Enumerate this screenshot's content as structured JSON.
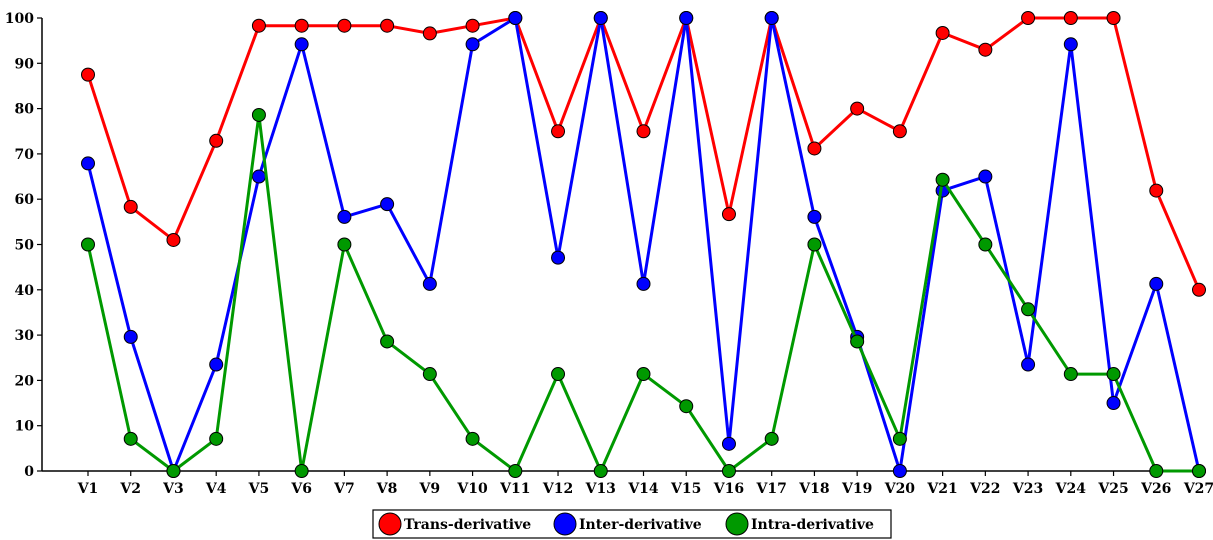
{
  "chart_data": {
    "type": "line",
    "title": "",
    "xlabel": "",
    "ylabel": "",
    "ylim": [
      0,
      100
    ],
    "yticks": [
      0,
      10,
      20,
      30,
      40,
      50,
      60,
      70,
      80,
      90,
      100
    ],
    "grid": false,
    "legend_position": "bottom-center",
    "categories": [
      "V1",
      "V2",
      "V3",
      "V4",
      "V5",
      "V6",
      "V7",
      "V8",
      "V9",
      "V10",
      "V11",
      "V12",
      "V13",
      "V14",
      "V15",
      "V16",
      "V17",
      "V18",
      "V19",
      "V20",
      "V21",
      "V22",
      "V23",
      "V24",
      "V25",
      "V26",
      "V27"
    ],
    "series": [
      {
        "name": "Trans-derivative",
        "color": "#ff0000",
        "values": [
          87.5,
          58.3,
          51,
          72.9,
          98.3,
          98.3,
          98.3,
          98.3,
          96.6,
          98.3,
          100,
          75,
          100,
          75,
          100,
          56.7,
          100,
          71.2,
          80,
          75,
          96.7,
          93,
          100,
          100,
          100,
          61.9,
          40
        ]
      },
      {
        "name": "Inter-derivative",
        "color": "#0000ff",
        "values": [
          67.9,
          29.6,
          0,
          23.5,
          65,
          94.2,
          56.1,
          58.9,
          41.3,
          94.2,
          100,
          47.1,
          100,
          41.3,
          100,
          6,
          100,
          56.1,
          29.6,
          0,
          61.9,
          65,
          23.5,
          94.2,
          15,
          41.3,
          0
        ]
      },
      {
        "name": "Intra-derivative",
        "color": "#009900",
        "values": [
          50,
          7.1,
          0,
          7.1,
          78.6,
          0,
          50,
          28.6,
          21.4,
          7.1,
          0,
          21.4,
          0,
          21.4,
          14.3,
          0,
          7.1,
          50,
          28.6,
          7.1,
          64.3,
          50,
          35.7,
          21.4,
          21.4,
          0,
          0
        ]
      }
    ]
  }
}
